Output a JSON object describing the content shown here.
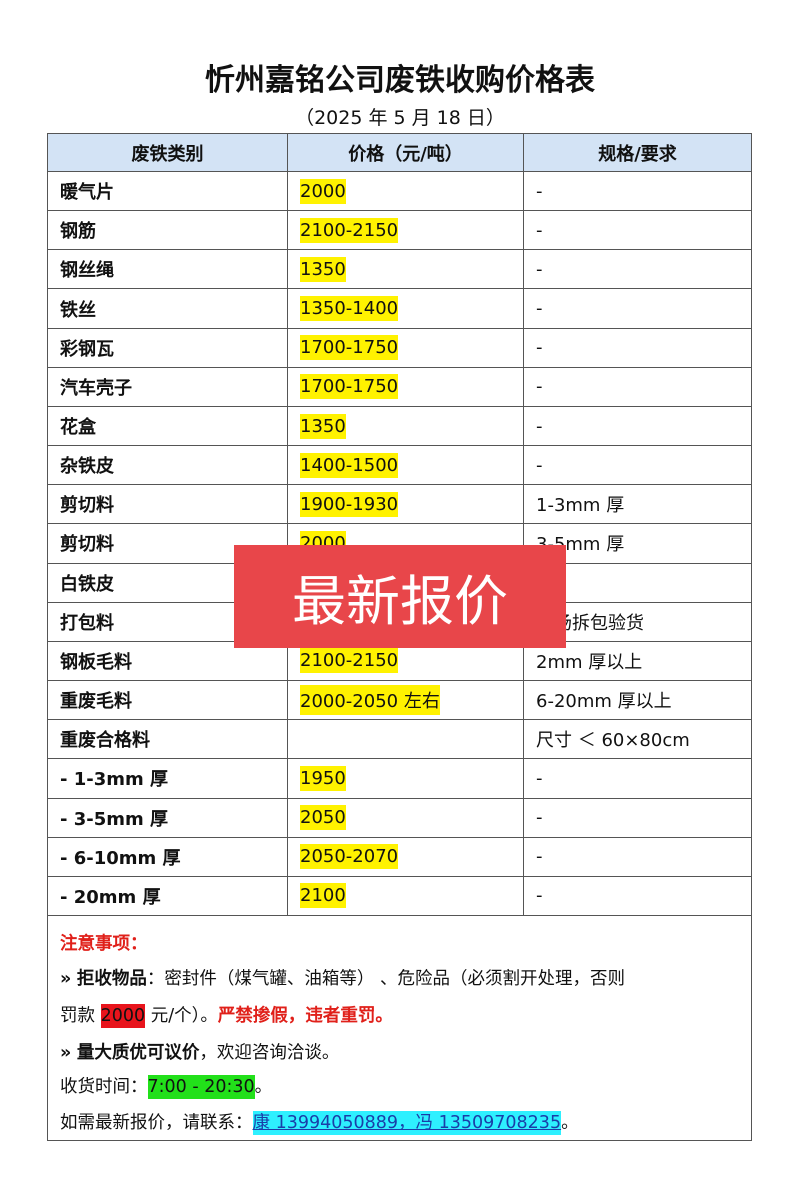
{
  "header": {
    "title": "忻州嘉铭公司废铁收购价格表",
    "date": "（2025 年 5 月 18 日）"
  },
  "table": {
    "columns": [
      "废铁类别",
      "价格（元/吨）",
      "规格/要求"
    ],
    "rows": [
      [
        "暖气片",
        "2000",
        "-"
      ],
      [
        "钢筋",
        "2100-2150",
        "-"
      ],
      [
        "钢丝绳",
        "1350",
        "-"
      ],
      [
        "铁丝",
        "1350-1400",
        "-"
      ],
      [
        "彩钢瓦",
        "1700-1750",
        "-"
      ],
      [
        "汽车壳子",
        "1700-1750",
        "-"
      ],
      [
        "花盒",
        "1350",
        "-"
      ],
      [
        "杂铁皮",
        "1400-1500",
        "-"
      ],
      [
        "剪切料",
        "1900-1930",
        "1-3mm 厚"
      ],
      [
        "剪切料",
        "2000",
        "3-5mm 厚"
      ],
      [
        "白铁皮",
        null,
        null
      ],
      [
        "打包料",
        null,
        "现场拆包验货"
      ],
      [
        "钢板毛料",
        "2100-2150",
        "2mm 厚以上"
      ],
      [
        "重废毛料",
        "2000-2050 左右",
        "6-20mm 厚以上"
      ],
      [
        "重废合格料",
        null,
        "尺寸 ＜ 60×80cm"
      ],
      [
        "- 1-3mm 厚",
        "1950",
        "-"
      ],
      [
        "- 3-5mm 厚",
        "2050",
        "-"
      ],
      [
        "- 6-10mm 厚",
        "2050-2070",
        "-"
      ],
      [
        "- 20mm 厚",
        "2100",
        "-"
      ]
    ]
  },
  "notes": {
    "heading": "注意事项：",
    "reject": {
      "bullet": "»",
      "label": "拒收物品",
      "text1": "：密封件（煤气罐、油箱等） 、危险品（必须割开处理，否则",
      "text2": "罚款",
      "fine": "2000",
      "text3": "元/个）。",
      "warn": "严禁掺假，违者重罚。"
    },
    "negotiable": {
      "bullet": "»",
      "label": "量大质优可议价",
      "text": "，欢迎咨询洽谈。"
    },
    "hours": {
      "label": "收货时间：",
      "value": "7:00 - 20:30",
      "end": "。"
    },
    "contact": {
      "label": "如需最新报价，请联系：",
      "value": "康 13994050889，冯 13509708235",
      "end": "。"
    }
  },
  "overlay": "最新报价"
}
